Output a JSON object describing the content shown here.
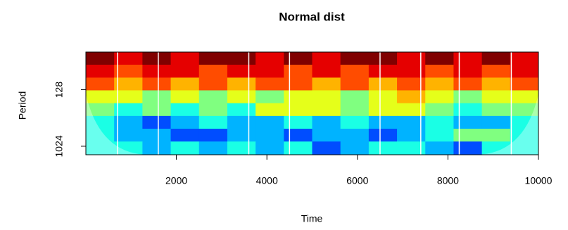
{
  "chart_data": {
    "type": "wavelet",
    "title": "Normal dist",
    "x_label": "Time",
    "y_label": "Period",
    "xlim": [
      0,
      10000
    ],
    "xticks": [
      2000,
      4000,
      6000,
      8000,
      10000
    ],
    "ylim": [
      1400,
      32
    ],
    "yticks": [
      128,
      1024
    ],
    "log_scale_y": true,
    "xbins": [
      0,
      625,
      1250,
      1875,
      2500,
      3125,
      3750,
      4375,
      5000,
      5625,
      6250,
      6875,
      7500,
      8125,
      8750,
      9375,
      10000
    ],
    "ybins": [
      32,
      51,
      82,
      131,
      210,
      336,
      538,
      861,
      1400
    ],
    "zlim": [
      0,
      10
    ],
    "z": [
      [
        10,
        9,
        10,
        9,
        10,
        10,
        9,
        10,
        9,
        10,
        10,
        9,
        10,
        9,
        10,
        9
      ],
      [
        9,
        8,
        9,
        9,
        8,
        9,
        9,
        8,
        9,
        8,
        9,
        9,
        8,
        9,
        8,
        9
      ],
      [
        8,
        7,
        8,
        7,
        8,
        7,
        8,
        8,
        7,
        8,
        7,
        8,
        7,
        8,
        7,
        8
      ],
      [
        6,
        6,
        5,
        6,
        5,
        6,
        5,
        6,
        6,
        5,
        6,
        7,
        6,
        5,
        6,
        6
      ],
      [
        5,
        4,
        5,
        4,
        5,
        4,
        6,
        6,
        6,
        5,
        6,
        6,
        5,
        4,
        5,
        5
      ],
      [
        4,
        3,
        2,
        3,
        4,
        3,
        3,
        4,
        3,
        4,
        3,
        3,
        4,
        3,
        3,
        4
      ],
      [
        4,
        3,
        3,
        2,
        2,
        3,
        3,
        2,
        3,
        3,
        2,
        3,
        4,
        5,
        5,
        4
      ],
      [
        4,
        4,
        3,
        4,
        3,
        4,
        3,
        4,
        2,
        3,
        4,
        4,
        3,
        2,
        4,
        4
      ]
    ],
    "vlines": [
      700,
      1600,
      3600,
      4500,
      6500,
      7400,
      8250,
      9400
    ]
  }
}
